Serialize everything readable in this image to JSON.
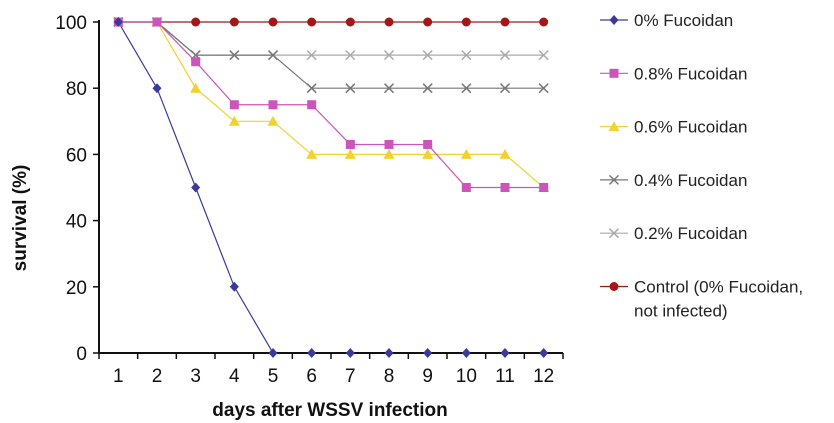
{
  "chart_data": {
    "type": "line",
    "xlabel": "days after WSSV infection",
    "ylabel": "survival (%)",
    "x": [
      1,
      2,
      3,
      4,
      5,
      6,
      7,
      8,
      9,
      10,
      11,
      12
    ],
    "xlim": [
      0.5,
      12.5
    ],
    "ylim": [
      0,
      100
    ],
    "yticks": [
      0,
      20,
      40,
      60,
      80,
      100
    ],
    "grid": false,
    "legend_position": "right",
    "series": [
      {
        "name": "0% Fucoidan",
        "color": "#3a3a9a",
        "marker": "diamond",
        "values": [
          100,
          80,
          50,
          20,
          0,
          0,
          0,
          0,
          0,
          0,
          0,
          0
        ]
      },
      {
        "name": "0.8% Fucoidan",
        "color": "#cc55bb",
        "marker": "square",
        "values": [
          100,
          100,
          88,
          75,
          75,
          75,
          63,
          63,
          63,
          50,
          50,
          50
        ]
      },
      {
        "name": "0.6% Fucoidan",
        "color": "#f0d230",
        "marker": "triangle",
        "values": [
          100,
          100,
          80,
          70,
          70,
          60,
          60,
          60,
          60,
          60,
          60,
          50
        ]
      },
      {
        "name": "0.4% Fucoidan",
        "color": "#777777",
        "marker": "x",
        "values": [
          100,
          100,
          90,
          90,
          90,
          80,
          80,
          80,
          80,
          80,
          80,
          80
        ]
      },
      {
        "name": "0.2% Fucoidan",
        "color": "#aaaaaa",
        "marker": "x",
        "values": [
          100,
          100,
          90,
          90,
          90,
          90,
          90,
          90,
          90,
          90,
          90,
          90
        ]
      },
      {
        "name": "Control (0% Fucoidan,\nnot infected)",
        "color": "#a01818",
        "marker": "circle",
        "values": [
          100,
          100,
          100,
          100,
          100,
          100,
          100,
          100,
          100,
          100,
          100,
          100
        ]
      }
    ]
  }
}
